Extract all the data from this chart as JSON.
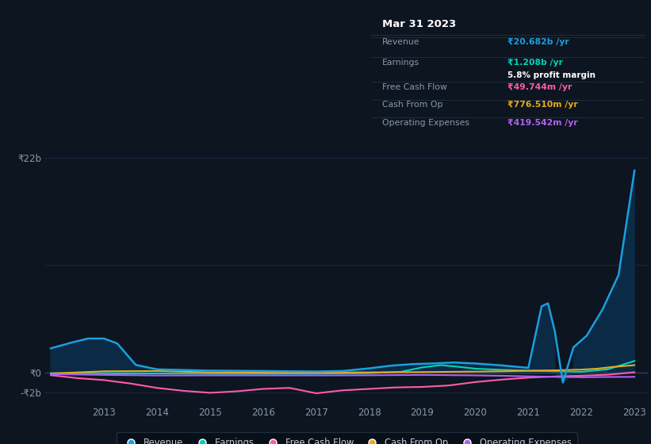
{
  "bg_color": "#0d1520",
  "plot_bg_color": "#0d1520",
  "grid_color": "#1a2840",
  "revenue_color": "#1a9fe0",
  "revenue_fill_color": "#0a2a45",
  "earnings_color": "#00d4b8",
  "fcf_color": "#ff5ca8",
  "cashfromop_color": "#e6aa1e",
  "opex_color": "#b060f0",
  "tick_color": "#8899aa",
  "tooltip_bg": "#080e18",
  "tooltip_border": "#253545",
  "tooltip_title": "Mar 31 2023",
  "rev_x": [
    2012.0,
    2012.4,
    2012.7,
    2013.0,
    2013.25,
    2013.6,
    2014.0,
    2014.5,
    2015.0,
    2015.5,
    2016.0,
    2016.5,
    2017.0,
    2017.5,
    2018.0,
    2018.4,
    2018.8,
    2019.2,
    2019.6,
    2020.0,
    2020.5,
    2021.0,
    2021.25,
    2021.37,
    2021.5,
    2021.65,
    2021.85,
    2022.1,
    2022.4,
    2022.7,
    2023.0
  ],
  "rev_y": [
    2.5,
    3.1,
    3.5,
    3.5,
    3.0,
    0.8,
    0.35,
    0.28,
    0.22,
    0.2,
    0.18,
    0.15,
    0.13,
    0.18,
    0.45,
    0.72,
    0.88,
    0.95,
    1.05,
    0.95,
    0.75,
    0.5,
    6.8,
    7.1,
    4.2,
    -1.0,
    2.6,
    3.8,
    6.5,
    10.0,
    20.682
  ],
  "earn_x": [
    2012.0,
    2013.0,
    2014.0,
    2015.0,
    2016.0,
    2017.0,
    2018.0,
    2018.6,
    2019.0,
    2019.35,
    2019.7,
    2020.0,
    2020.5,
    2021.0,
    2021.5,
    2022.0,
    2022.5,
    2023.0
  ],
  "earn_y": [
    -0.05,
    -0.05,
    -0.07,
    -0.1,
    -0.1,
    -0.08,
    -0.04,
    0.1,
    0.55,
    0.78,
    0.6,
    0.42,
    0.3,
    0.22,
    0.15,
    0.1,
    0.35,
    1.208
  ],
  "fcf_x": [
    2012.0,
    2012.5,
    2013.0,
    2013.5,
    2014.0,
    2014.5,
    2015.0,
    2015.5,
    2016.0,
    2016.5,
    2017.0,
    2017.5,
    2018.0,
    2018.5,
    2019.0,
    2019.5,
    2020.0,
    2020.5,
    2021.0,
    2021.5,
    2022.0,
    2022.5,
    2023.0
  ],
  "fcf_y": [
    -0.25,
    -0.55,
    -0.75,
    -1.1,
    -1.55,
    -1.85,
    -2.05,
    -1.9,
    -1.65,
    -1.55,
    -2.1,
    -1.8,
    -1.65,
    -1.5,
    -1.45,
    -1.3,
    -0.95,
    -0.7,
    -0.5,
    -0.38,
    -0.3,
    -0.2,
    0.0497
  ],
  "cop_x": [
    2012.0,
    2013.0,
    2014.0,
    2015.0,
    2016.0,
    2017.0,
    2018.0,
    2019.0,
    2020.0,
    2020.5,
    2021.0,
    2021.5,
    2022.0,
    2022.3,
    2022.6,
    2023.0
  ],
  "cop_y": [
    -0.08,
    0.15,
    0.18,
    0.04,
    0.02,
    0.02,
    0.04,
    0.07,
    0.12,
    0.15,
    0.2,
    0.25,
    0.32,
    0.42,
    0.6,
    0.7765
  ],
  "opex_x": [
    2012.0,
    2013.0,
    2014.0,
    2015.0,
    2016.0,
    2017.0,
    2018.0,
    2019.0,
    2020.0,
    2020.5,
    2021.0,
    2021.5,
    2022.0,
    2022.3,
    2022.6,
    2023.0
  ],
  "opex_y": [
    -0.14,
    -0.22,
    -0.28,
    -0.27,
    -0.27,
    -0.27,
    -0.26,
    -0.22,
    -0.27,
    -0.31,
    -0.37,
    -0.42,
    -0.46,
    -0.44,
    -0.43,
    -0.4195
  ],
  "xticks": [
    2013,
    2014,
    2015,
    2016,
    2017,
    2018,
    2019,
    2020,
    2021,
    2022,
    2023
  ],
  "legend_items": [
    "Revenue",
    "Earnings",
    "Free Cash Flow",
    "Cash From Op",
    "Operating Expenses"
  ]
}
